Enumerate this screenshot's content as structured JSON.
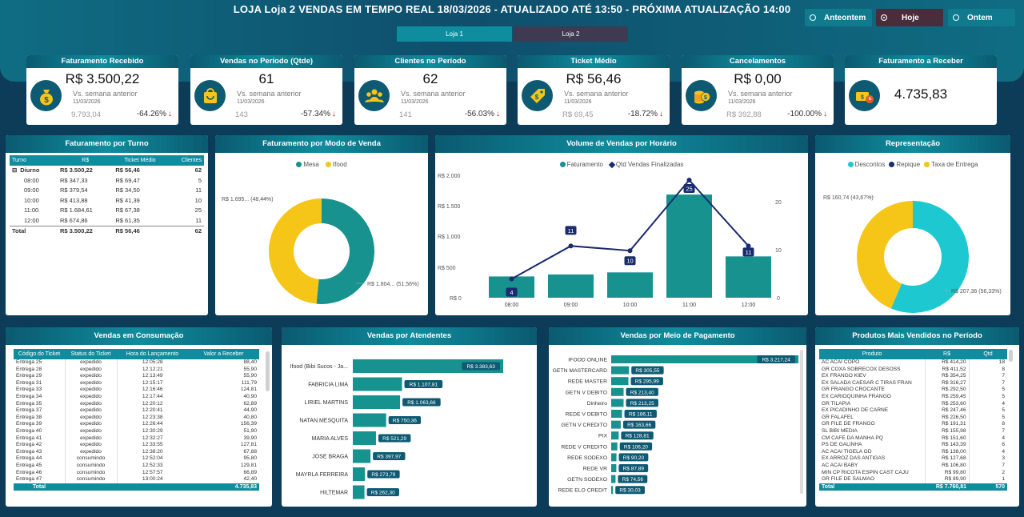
{
  "header": {
    "title": "LOJA Loja 2 VENDAS EM TEMPO REAL 18/03/2026  - ATUALIZADO ATÉ 13:50 - PRÓXIMA ATUALIZAÇÃO 14:00"
  },
  "day_options": [
    {
      "label": "Anteontem"
    },
    {
      "label": "Hoje"
    },
    {
      "label": "Ontem"
    }
  ],
  "page_buttons": [
    {
      "label": "Loja 1"
    },
    {
      "label": "Loja 2"
    }
  ],
  "colors": {
    "accent": "#17928f",
    "yellow": "#f5c518",
    "cyan": "#1dc8d0",
    "navy": "#1a2b6e",
    "down": "#c00000"
  },
  "kpis": [
    {
      "title": "Faturamento Recebido",
      "value": "R$ 3.500,22",
      "label": "Vs. semana anterior",
      "date": "11/03/2026",
      "prev": "9.793,04",
      "pct": "-64.26%",
      "icon": "money-bag-icon"
    },
    {
      "title": "Vendas no Período (Qtde)",
      "value": "61",
      "label": "Vs. semana anterior",
      "date": "11/03/2026",
      "prev": "143",
      "pct": "-57.34%",
      "icon": "shopping-bag-icon"
    },
    {
      "title": "Clientes no Período",
      "value": "62",
      "label": "Vs. semana anterior",
      "date": "11/03/2026",
      "prev": "141",
      "pct": "-56.03%",
      "icon": "people-icon"
    },
    {
      "title": "Ticket Médio",
      "value": "R$ 56,46",
      "label": "Vs. semana anterior",
      "date": "11/03/2026",
      "prev": "R$ 69,45",
      "pct": "-18.72%",
      "icon": "price-tag-icon"
    },
    {
      "title": "Cancelamentos",
      "value": "R$ 0,00",
      "label": "Vs. semana anterior",
      "date": "11/03/2026",
      "prev": "R$ 392,88",
      "pct": "-100.00%",
      "icon": "coins-icon"
    },
    {
      "title": "Faturamento a Receber",
      "value": "4.735,83",
      "icon": "money-clock-icon"
    }
  ],
  "turno": {
    "title": "Faturamento por Turno",
    "headers": [
      "Turno",
      "R$",
      "Ticket Médio",
      "Clientes"
    ],
    "group": {
      "expander": "⊟",
      "name": "Diurno",
      "rs": "R$ 3.500,22",
      "tm": "R$ 56,46",
      "cl": "62"
    },
    "rows": [
      {
        "turno": "08:00",
        "rs": "R$ 347,33",
        "tm": "R$ 69,47",
        "cl": "5"
      },
      {
        "turno": "09:00",
        "rs": "R$ 379,54",
        "tm": "R$ 34,50",
        "cl": "11"
      },
      {
        "turno": "10:00",
        "rs": "R$ 413,88",
        "tm": "R$ 41,39",
        "cl": "10"
      },
      {
        "turno": "11:00",
        "rs": "R$ 1.684,61",
        "tm": "R$ 67,38",
        "cl": "25"
      },
      {
        "turno": "12:00",
        "rs": "R$ 674,86",
        "tm": "R$ 61,35",
        "cl": "11"
      }
    ],
    "total": {
      "turno": "Total",
      "rs": "R$ 3.500,22",
      "tm": "R$ 56,46",
      "cl": "62"
    }
  },
  "modo": {
    "title": "Faturamento por Modo de Venda",
    "legend": [
      "Mesa",
      "Ifood"
    ],
    "label_ifood": "R$ 1.695... (48,44%)",
    "label_mesa": "R$ 1.804... (51,56%)"
  },
  "horario": {
    "title": "Volume de Vendas por Horário",
    "legend": [
      "Faturamento",
      "Qtd Vendas Finalizadas"
    ],
    "yleft": [
      "R$ 2.000",
      "R$ 1.500",
      "R$ 1.000",
      "R$ 500",
      "R$ 0"
    ],
    "yright": [
      "20",
      "10",
      "0"
    ]
  },
  "representacao": {
    "title": "Representação",
    "legend": [
      "Descontos",
      "Repique",
      "Taxa de Entrega"
    ],
    "label_taxa": "R$ 160,74 (43,67%)",
    "label_desc": "R$ 207,36 (56,33%)"
  },
  "chart_data": [
    {
      "type": "pie",
      "title": "Faturamento por Modo de Venda",
      "categories": [
        "Mesa",
        "Ifood"
      ],
      "values": [
        51.56,
        48.44
      ],
      "unit": "%"
    },
    {
      "type": "bar",
      "title": "Volume de Vendas por Horário",
      "categories": [
        "08:00",
        "09:00",
        "10:00",
        "11:00",
        "12:00"
      ],
      "series": [
        {
          "name": "Faturamento",
          "values": [
            347.33,
            379.54,
            413.88,
            1684.61,
            674.86
          ]
        },
        {
          "name": "Qtd Vendas Finalizadas",
          "values": [
            4,
            11,
            10,
            25,
            11
          ]
        }
      ],
      "ylim": [
        0,
        2000
      ],
      "y2lim": [
        0,
        25
      ]
    },
    {
      "type": "pie",
      "title": "Representação",
      "categories": [
        "Descontos",
        "Repique",
        "Taxa de Entrega"
      ],
      "values": [
        56.33,
        0,
        43.67
      ],
      "unit": "%"
    },
    {
      "type": "bar",
      "title": "Vendas por Atendentes",
      "categories": [
        "Ifood (Bibi Sucos - Ja...",
        "FABRICIA LIMA",
        "LIRIEL MARTINS",
        "NATAN MESQUITA",
        "MARIA ALVES",
        "JOSE BRAGA",
        "MAYRLA FERREIRA",
        "HILTEMAR"
      ],
      "values": [
        3383.63,
        1107.81,
        1063.66,
        750.36,
        521.29,
        397.97,
        273.79,
        262.3
      ],
      "labels": [
        "R$ 3.383,63",
        "R$ 1.107,81",
        "R$ 1.063,66",
        "R$ 750,36",
        "R$ 521,29",
        "R$ 397,97",
        "R$ 273,79",
        "R$ 262,30"
      ]
    },
    {
      "type": "bar",
      "title": "Vendas por Meio de Pagamento",
      "categories": [
        "IFOOD ONLINE",
        "GETN MASTERCARD",
        "REDE MASTER",
        "GETN V DEBITO",
        "Dinheiro",
        "REDE V DEBITO",
        "GETN V CREDITO",
        "PIX",
        "REDE V CREDITO",
        "REDE SODEXO",
        "REDE VR",
        "GETN SODEXO",
        "REDE ELO CREDIT"
      ],
      "values": [
        3217.24,
        305.55,
        295.99,
        213.4,
        213.25,
        186.11,
        163.66,
        128.81,
        106.2,
        90.2,
        87.89,
        74.56,
        30.03
      ],
      "labels": [
        "R$ 3.217,24",
        "R$ 305,55",
        "R$ 295,99",
        "R$ 213,40",
        "R$ 213,25",
        "R$ 186,11",
        "R$ 163,66",
        "R$ 128,81",
        "R$ 106,20",
        "R$ 90,20",
        "R$ 87,89",
        "R$ 74,56",
        "R$ 30,03"
      ]
    }
  ],
  "consumo": {
    "title": "Vendas em Consumação",
    "headers": [
      "Código do Ticket",
      "Status do Ticket",
      "Hora do Lançamento",
      "Valor a Receber"
    ],
    "rows": [
      [
        "Entrega 25",
        "expedido",
        "12:05:28",
        "88,40"
      ],
      [
        "Entrega 28",
        "expedido",
        "12:12:21",
        "55,90"
      ],
      [
        "Entrega 29",
        "expedido",
        "12:13:49",
        "55,90"
      ],
      [
        "Entrega 31",
        "expedido",
        "12:15:17",
        "111,79"
      ],
      [
        "Entrega 33",
        "expedido",
        "12:16:46",
        "124,81"
      ],
      [
        "Entrega 34",
        "expedido",
        "12:17:44",
        "40,90"
      ],
      [
        "Entrega 35",
        "expedido",
        "12:20:12",
        "62,89"
      ],
      [
        "Entrega 37",
        "expedido",
        "12:20:41",
        "44,90"
      ],
      [
        "Entrega 38",
        "expedido",
        "12:23:38",
        "40,80"
      ],
      [
        "Entrega 39",
        "expedido",
        "12:26:44",
        "156,39"
      ],
      [
        "Entrega 40",
        "expedido",
        "12:30:29",
        "51,90"
      ],
      [
        "Entrega 41",
        "expedido",
        "12:32:27",
        "39,90"
      ],
      [
        "Entrega 42",
        "expedido",
        "12:33:55",
        "127,81"
      ],
      [
        "Entrega 43",
        "expedido",
        "12:38:20",
        "67,88"
      ],
      [
        "Entrega 44",
        "consumindo",
        "12:52:04",
        "95,80"
      ],
      [
        "Entrega 45",
        "consumindo",
        "12:52:33",
        "129,81"
      ],
      [
        "Entrega 46",
        "consumindo",
        "12:57:57",
        "66,89"
      ],
      [
        "Entrega 47",
        "consumindo",
        "13:00:24",
        "42,40"
      ]
    ],
    "total_label": "Total",
    "total_value": "4.735,83"
  },
  "atendentes": {
    "title": "Vendas por Atendentes"
  },
  "pagamento": {
    "title": "Vendas por Meio de Pagamento"
  },
  "produtos": {
    "title": "Produtos Mais Vendidos no Período",
    "headers": [
      "Produto",
      "R$",
      "Qtd"
    ],
    "rows": [
      [
        "AC ACAI COPO",
        "R$ 414,20",
        "18"
      ],
      [
        "GR COXA SOBRECOX DESOSS",
        "R$ 411,52",
        "8"
      ],
      [
        "EX FRANGO KIEV",
        "R$ 354,25",
        "7"
      ],
      [
        "EX SALADA CAESAR C TIRAS FRAN",
        "R$ 316,27",
        "7"
      ],
      [
        "GR FRANGO CROCANTE",
        "R$ 292,50",
        "5"
      ],
      [
        "EX CARIOQUINHA FRANGO",
        "R$ 259,45",
        "5"
      ],
      [
        "GR TILAPIA",
        "R$ 253,60",
        "4"
      ],
      [
        "EX PICADINHO DE CARNE",
        "R$ 247,46",
        "5"
      ],
      [
        "GR FALAFEL",
        "R$ 226,50",
        "5"
      ],
      [
        "GR FILE DE FRANGO",
        "R$ 191,31",
        "8"
      ],
      [
        "SL BIBI MEDIA",
        "R$ 155,98",
        "7"
      ],
      [
        "CM CAFE DA MANHA PQ",
        "R$ 151,60",
        "4"
      ],
      [
        "PS DE GALINHA",
        "R$ 143,39",
        "6"
      ],
      [
        "AC ACAI TIGELA GD",
        "R$ 138,00",
        "4"
      ],
      [
        "EX ARROZ DAS ANTIGAS",
        "R$ 127,68",
        "3"
      ],
      [
        "AC ACAI BABY",
        "R$ 106,80",
        "7"
      ],
      [
        "MIN CP RICOTA ESPIN CAST CAJU",
        "R$ 99,80",
        "2"
      ],
      [
        "GR FILE DE SALMAO",
        "R$ 89,90",
        "1"
      ]
    ],
    "total": [
      "Total",
      "R$ 7.760,81",
      "570"
    ]
  }
}
